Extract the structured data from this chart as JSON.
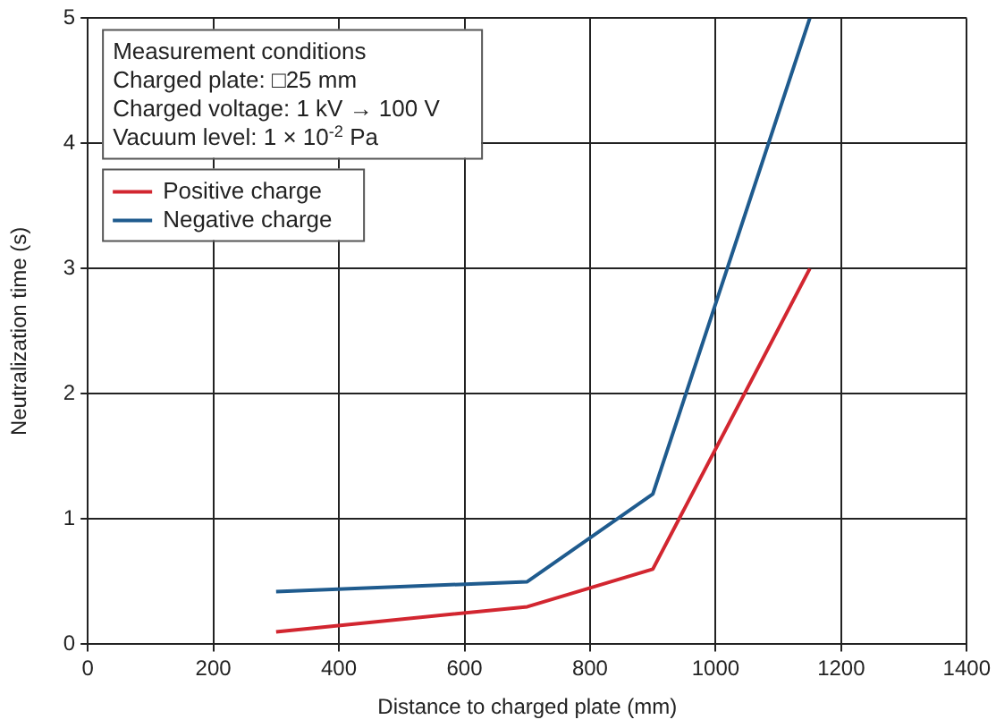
{
  "chart_data": {
    "type": "line",
    "xlabel": "Distance to charged plate (mm)",
    "ylabel": "Neutralization time (s)",
    "x": [
      300,
      700,
      900,
      1150
    ],
    "series": [
      {
        "name": "Positive charge",
        "color": "#d22630",
        "values": [
          0.1,
          0.3,
          0.6,
          3
        ]
      },
      {
        "name": "Negative charge",
        "color": "#1f5b8e",
        "values": [
          0.42,
          0.5,
          1.2,
          5
        ]
      }
    ],
    "xlim": [
      0,
      1400
    ],
    "xticks": [
      0,
      200,
      400,
      600,
      800,
      1000,
      1200,
      1400
    ],
    "ylim": [
      0,
      5
    ],
    "yticks": [
      0,
      1,
      2,
      3,
      4,
      5
    ],
    "grid": true,
    "legend": "top left",
    "marker": "none",
    "line_style": "solid",
    "annotations": [
      "Measurement conditions",
      "Charged plate: □25 mm",
      "Charged voltage: 1 kV → 100 V",
      "Vacuum level: 1 × 10$^{-2}$ Pa"
    ]
  }
}
